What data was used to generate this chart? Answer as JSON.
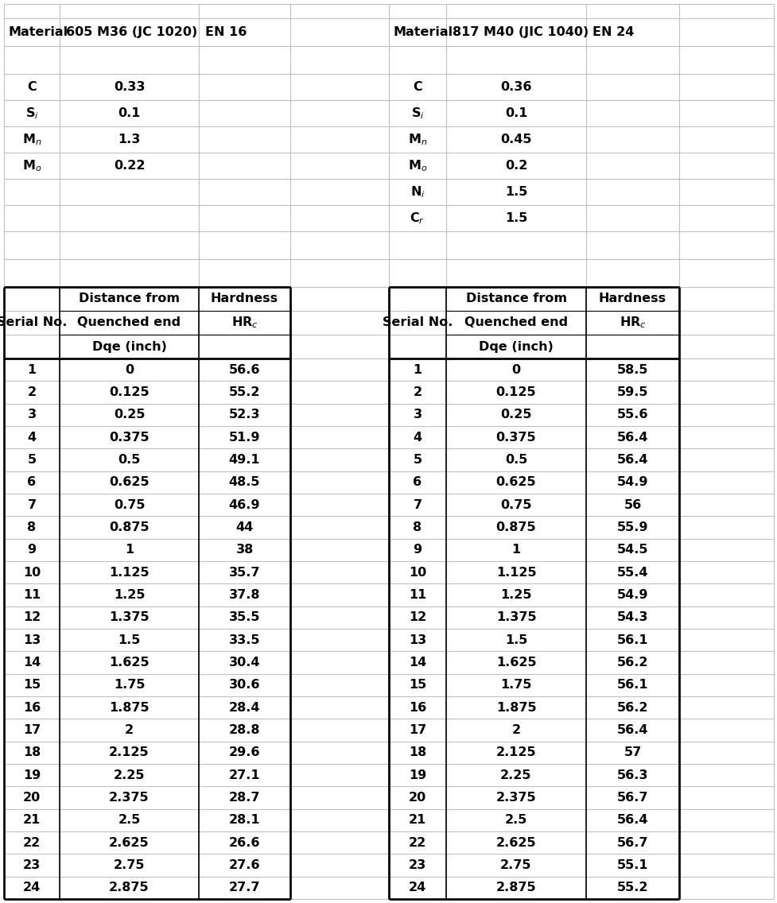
{
  "left_material": "605 M36 (JC 1020)",
  "left_standard": "EN 16",
  "left_composition": [
    [
      "C",
      "0.33"
    ],
    [
      "S$_i$",
      "0.1"
    ],
    [
      "M$_n$",
      "1.3"
    ],
    [
      "M$_o$",
      "0.22"
    ]
  ],
  "right_material": "817 M40 (JIC 1040)",
  "right_standard": "EN 24",
  "right_composition": [
    [
      "C",
      "0.36"
    ],
    [
      "S$_i$",
      "0.1"
    ],
    [
      "M$_n$",
      "0.45"
    ],
    [
      "M$_o$",
      "0.2"
    ],
    [
      "N$_i$",
      "1.5"
    ],
    [
      "C$_r$",
      "1.5"
    ]
  ],
  "left_data": [
    [
      1,
      "0",
      "56.6"
    ],
    [
      2,
      "0.125",
      "55.2"
    ],
    [
      3,
      "0.25",
      "52.3"
    ],
    [
      4,
      "0.375",
      "51.9"
    ],
    [
      5,
      "0.5",
      "49.1"
    ],
    [
      6,
      "0.625",
      "48.5"
    ],
    [
      7,
      "0.75",
      "46.9"
    ],
    [
      8,
      "0.875",
      "44"
    ],
    [
      9,
      "1",
      "38"
    ],
    [
      10,
      "1.125",
      "35.7"
    ],
    [
      11,
      "1.25",
      "37.8"
    ],
    [
      12,
      "1.375",
      "35.5"
    ],
    [
      13,
      "1.5",
      "33.5"
    ],
    [
      14,
      "1.625",
      "30.4"
    ],
    [
      15,
      "1.75",
      "30.6"
    ],
    [
      16,
      "1.875",
      "28.4"
    ],
    [
      17,
      "2",
      "28.8"
    ],
    [
      18,
      "2.125",
      "29.6"
    ],
    [
      19,
      "2.25",
      "27.1"
    ],
    [
      20,
      "2.375",
      "28.7"
    ],
    [
      21,
      "2.5",
      "28.1"
    ],
    [
      22,
      "2.625",
      "26.6"
    ],
    [
      23,
      "2.75",
      "27.6"
    ],
    [
      24,
      "2.875",
      "27.7"
    ]
  ],
  "right_data": [
    [
      1,
      "0",
      "58.5"
    ],
    [
      2,
      "0.125",
      "59.5"
    ],
    [
      3,
      "0.25",
      "55.6"
    ],
    [
      4,
      "0.375",
      "56.4"
    ],
    [
      5,
      "0.5",
      "56.4"
    ],
    [
      6,
      "0.625",
      "54.9"
    ],
    [
      7,
      "0.75",
      "56"
    ],
    [
      8,
      "0.875",
      "55.9"
    ],
    [
      9,
      "1",
      "54.5"
    ],
    [
      10,
      "1.125",
      "55.4"
    ],
    [
      11,
      "1.25",
      "54.9"
    ],
    [
      12,
      "1.375",
      "54.3"
    ],
    [
      13,
      "1.5",
      "56.1"
    ],
    [
      14,
      "1.625",
      "56.2"
    ],
    [
      15,
      "1.75",
      "56.1"
    ],
    [
      16,
      "1.875",
      "56.2"
    ],
    [
      17,
      "2",
      "56.4"
    ],
    [
      18,
      "2.125",
      "57"
    ],
    [
      19,
      "2.25",
      "56.3"
    ],
    [
      20,
      "2.375",
      "56.7"
    ],
    [
      21,
      "2.5",
      "56.4"
    ],
    [
      22,
      "2.625",
      "56.7"
    ],
    [
      23,
      "2.75",
      "55.1"
    ],
    [
      24,
      "2.875",
      "55.2"
    ]
  ],
  "bg_color": "#ffffff",
  "line_color": "#c0c0c0",
  "bold_line_color": "#000000",
  "font_size": 11.5
}
